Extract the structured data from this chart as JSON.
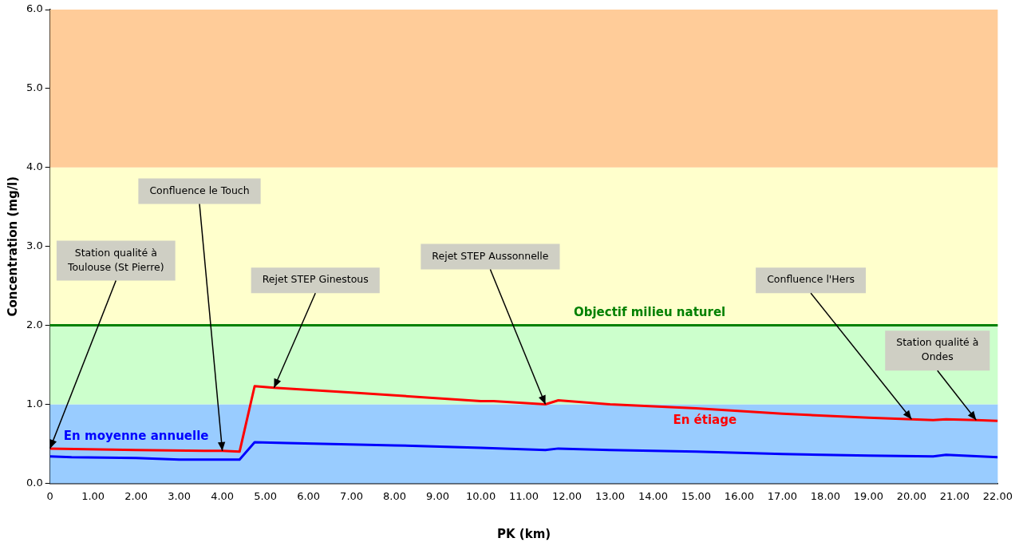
{
  "chart_data": {
    "type": "line",
    "xlabel": "PK (km)",
    "ylabel": "Concentration (mg/l)",
    "xlim": [
      0,
      22
    ],
    "ylim": [
      0,
      6
    ],
    "xticks": [
      0,
      {
        "value": 1,
        "label": "1.00"
      },
      {
        "value": 2,
        "label": "2.00"
      },
      {
        "value": 3,
        "label": "3.00"
      },
      {
        "value": 4,
        "label": "4.00"
      },
      {
        "value": 5,
        "label": "5.00"
      },
      {
        "value": 6,
        "label": "6.00"
      },
      {
        "value": 7,
        "label": "7.00"
      },
      {
        "value": 8,
        "label": "8.00"
      },
      {
        "value": 9,
        "label": "9.00"
      },
      {
        "value": 10,
        "label": "10.00"
      },
      {
        "value": 11,
        "label": "11.00"
      },
      {
        "value": 12,
        "label": "12.00"
      },
      {
        "value": 13,
        "label": "13.00"
      },
      {
        "value": 14,
        "label": "14.00"
      },
      {
        "value": 15,
        "label": "15.00"
      },
      {
        "value": 16,
        "label": "16.00"
      },
      {
        "value": 17,
        "label": "17.00"
      },
      {
        "value": 18,
        "label": "18.00"
      },
      {
        "value": 19,
        "label": "19.00"
      },
      {
        "value": 20,
        "label": "20.00"
      },
      {
        "value": 21,
        "label": "21.00"
      },
      {
        "value": 22,
        "label": "22.00"
      }
    ],
    "yticks": [
      {
        "value": 0,
        "label": "0.0"
      },
      {
        "value": 1,
        "label": "1.0"
      },
      {
        "value": 2,
        "label": "2.0"
      },
      {
        "value": 3,
        "label": "3.0"
      },
      {
        "value": 4,
        "label": "4.0"
      },
      {
        "value": 5,
        "label": "5.0"
      },
      {
        "value": 6,
        "label": "6.0"
      }
    ],
    "grid": false,
    "legend": false,
    "marker": "none",
    "line_style": "solid",
    "series": [
      {
        "name": "En étiage",
        "color": "#ff0000",
        "x": [
          0,
          2,
          4,
          4.4,
          4.75,
          5.2,
          7,
          10,
          10.3,
          11.5,
          11.8,
          13,
          15,
          17,
          19,
          20.5,
          20.8,
          21.5,
          22
        ],
        "values": [
          0.44,
          0.42,
          0.41,
          0.4,
          1.23,
          1.21,
          1.15,
          1.04,
          1.04,
          1.0,
          1.05,
          1.0,
          0.95,
          0.88,
          0.83,
          0.8,
          0.81,
          0.8,
          0.79
        ]
      },
      {
        "name": "En moyenne annuelle",
        "color": "#0000ff",
        "x": [
          0,
          0.5,
          2,
          3,
          4.4,
          4.75,
          5.5,
          8,
          10,
          11.5,
          11.8,
          13,
          15,
          17,
          19,
          20.5,
          20.8,
          22
        ],
        "values": [
          0.34,
          0.33,
          0.32,
          0.3,
          0.3,
          0.52,
          0.51,
          0.48,
          0.45,
          0.42,
          0.44,
          0.42,
          0.4,
          0.37,
          0.35,
          0.34,
          0.36,
          0.33
        ]
      }
    ],
    "bands": [
      {
        "axis": "y",
        "from": 0,
        "to": 1,
        "color": "#99ccff"
      },
      {
        "axis": "y",
        "from": 1,
        "to": 2,
        "color": "#ccffcc"
      },
      {
        "axis": "y",
        "from": 2,
        "to": 4,
        "color": "#ffffcc"
      },
      {
        "axis": "y",
        "from": 4,
        "to": 6,
        "color": "#ffcc99"
      }
    ],
    "ref_lines": [
      {
        "axis": "y",
        "value": 2,
        "label": "Objectif milieu naturel",
        "color": "#008000",
        "line_style": "solid"
      }
    ],
    "annotations": [
      {
        "text": "Station qualité à Toulouse (St Pierre)",
        "x": 0,
        "y": 0.44
      },
      {
        "text": "Confluence le Touch",
        "x": 4,
        "y": 0.41
      },
      {
        "text": "Rejet STEP Ginestous",
        "x": 5.2,
        "y": 1.21
      },
      {
        "text": "Rejet STEP Aussonnelle",
        "x": 11.5,
        "y": 1.0
      },
      {
        "text": "Confluence l'Hers",
        "x": 20,
        "y": 0.81
      },
      {
        "text": "Station qualité à Ondes",
        "x": 21.5,
        "y": 0.8
      }
    ]
  }
}
